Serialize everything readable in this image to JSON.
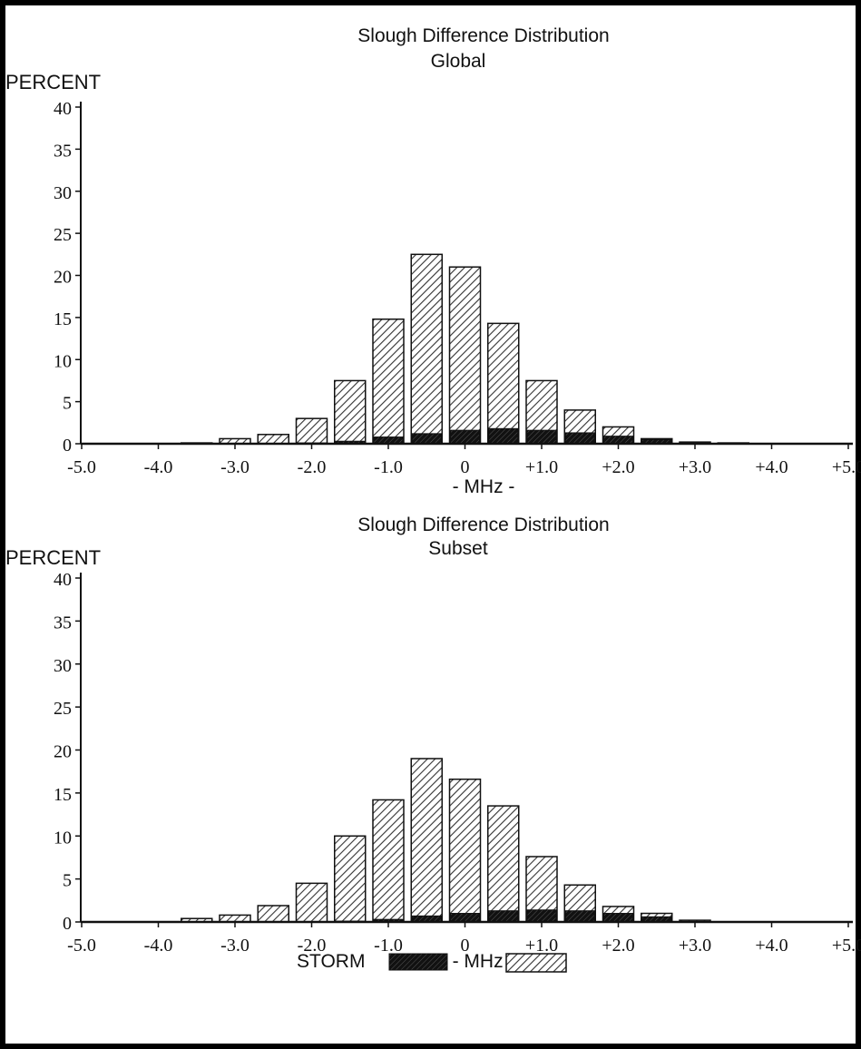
{
  "chart_data": [
    {
      "type": "bar",
      "title": "Slough Difference Distribution",
      "subtitle": "Global",
      "ylabel": "PERCENT",
      "xlabel": "- MHz -",
      "ylim": [
        0,
        40
      ],
      "yticks": [
        "0",
        "5",
        "10",
        "15",
        "20",
        "25",
        "30",
        "35",
        "40"
      ],
      "xticks": [
        "-5.0",
        "-4.0",
        "-3.0",
        "-2.0",
        "-1.0",
        "0",
        "+1.0",
        "+2.0",
        "+3.0",
        "+4.0",
        "+5.0"
      ],
      "x": [
        -4.5,
        -4.0,
        -3.5,
        -3.0,
        -2.5,
        -2.0,
        -1.5,
        -1.0,
        -0.5,
        0.0,
        0.5,
        1.0,
        1.5,
        2.0,
        2.5,
        3.0,
        3.5,
        4.0,
        4.5
      ],
      "series": [
        {
          "name": "",
          "values": [
            0.0,
            0.0,
            0.1,
            0.6,
            1.1,
            3.0,
            7.5,
            14.8,
            22.5,
            21.0,
            14.3,
            7.5,
            4.0,
            2.0,
            0.6,
            0.2,
            0.1,
            0.0,
            0.0
          ]
        },
        {
          "name": "STORM",
          "values": [
            0.0,
            0.0,
            0.0,
            0.0,
            0.0,
            0.1,
            0.3,
            0.8,
            1.2,
            1.6,
            1.8,
            1.6,
            1.3,
            0.9,
            0.5,
            0.1,
            0.0,
            0.0,
            0.0
          ]
        }
      ]
    },
    {
      "type": "bar",
      "title": "Slough Difference Distribution",
      "subtitle": "Subset",
      "ylabel": "PERCENT",
      "xlabel": "- MHz -",
      "ylim": [
        0,
        40
      ],
      "yticks": [
        "0",
        "5",
        "10",
        "15",
        "20",
        "25",
        "30",
        "35",
        "40"
      ],
      "xticks": [
        "-5.0",
        "-4.0",
        "-3.0",
        "-2.0",
        "-1.0",
        "0",
        "+1.0",
        "+2.0",
        "+3.0",
        "+4.0",
        "+5.0"
      ],
      "x": [
        -4.5,
        -4.0,
        -3.5,
        -3.0,
        -2.5,
        -2.0,
        -1.5,
        -1.0,
        -0.5,
        0.0,
        0.5,
        1.0,
        1.5,
        2.0,
        2.5,
        3.0,
        3.5,
        4.0,
        4.5
      ],
      "series": [
        {
          "name": "",
          "values": [
            0.0,
            0.0,
            0.4,
            0.8,
            1.9,
            4.5,
            10.0,
            14.2,
            19.0,
            16.6,
            13.5,
            7.6,
            4.3,
            1.8,
            1.0,
            0.2,
            0.0,
            0.0,
            0.0
          ]
        },
        {
          "name": "STORM",
          "values": [
            0.0,
            0.0,
            0.0,
            0.0,
            0.0,
            0.0,
            0.1,
            0.3,
            0.7,
            1.0,
            1.3,
            1.4,
            1.3,
            1.0,
            0.6,
            0.0,
            0.0,
            0.0,
            0.0
          ]
        }
      ]
    }
  ],
  "legend": {
    "label": "STORM",
    "storm_color": "#111111",
    "hatch_color": "#333333"
  },
  "colors": {
    "axis": "#111111",
    "border": "#000000",
    "background": "#ffffff"
  }
}
